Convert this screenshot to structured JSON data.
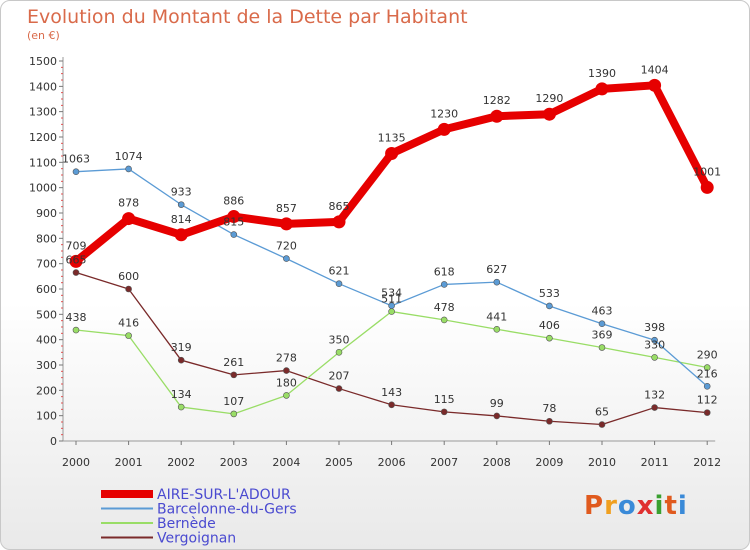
{
  "page": {
    "title": "Evolution du Montant de la Dette par Habitant",
    "subtitle": "(en €)",
    "logo": "Proxiti"
  },
  "colors": {
    "title": "#d96a4a",
    "legend_text": "#4a4ad0",
    "logo_letters": [
      "#e05a1e",
      "#f0a020",
      "#3a8ad8",
      "#e03030",
      "#3aa030",
      "#e05a1e",
      "#3a8ad8"
    ]
  },
  "chart_data": {
    "type": "line",
    "title": "Evolution du Montant de la Dette par Habitant",
    "ylabel": "(en €)",
    "xlabel": "",
    "ylim": [
      0,
      1500
    ],
    "yticks": [
      0,
      100,
      200,
      300,
      400,
      500,
      600,
      700,
      800,
      900,
      1000,
      1100,
      1200,
      1300,
      1400,
      1500
    ],
    "x": [
      "2000",
      "2001",
      "2002",
      "2003",
      "2004",
      "2005",
      "2006",
      "2007",
      "2008",
      "2009",
      "2010",
      "2011",
      "2012"
    ],
    "grid": false,
    "legend_position": "bottom-left",
    "series": [
      {
        "name": "AIRE-SUR-L'ADOUR",
        "color": "#e60000",
        "values": [
          709,
          878,
          814,
          886,
          857,
          865,
          1135,
          1230,
          1282,
          1290,
          1390,
          1404,
          1001
        ],
        "labels": [
          "709",
          "878",
          "814",
          "886",
          "857",
          "865",
          "1135",
          "1230",
          "1282",
          "1290",
          "1390",
          "1404",
          "1001"
        ]
      },
      {
        "name": "Barcelonne-du-Gers",
        "color": "#5b9bd5",
        "values": [
          1063,
          1074,
          933,
          815,
          720,
          621,
          534,
          618,
          627,
          533,
          463,
          398,
          216
        ],
        "labels": [
          "1063",
          "1074",
          "933",
          "815",
          "720",
          "621",
          "534",
          "618",
          "627",
          "533",
          "463",
          "398",
          "216"
        ]
      },
      {
        "name": "Bernède",
        "color": "#99dd66",
        "values": [
          438,
          416,
          134,
          107,
          180,
          350,
          511,
          478,
          441,
          406,
          369,
          330,
          290
        ],
        "labels": [
          "438",
          "416",
          "134",
          "107",
          "180",
          "350",
          "511",
          "478",
          "441",
          "406",
          "369",
          "330",
          "290"
        ]
      },
      {
        "name": "Vergoignan",
        "color": "#7a2a2a",
        "values": [
          665,
          600,
          319,
          261,
          278,
          207,
          143,
          115,
          99,
          78,
          65,
          132,
          112
        ],
        "labels": [
          "665",
          "600",
          "319",
          "261",
          "278",
          "207",
          "143",
          "115",
          "99",
          "78",
          "65",
          "132",
          "112"
        ]
      }
    ]
  }
}
